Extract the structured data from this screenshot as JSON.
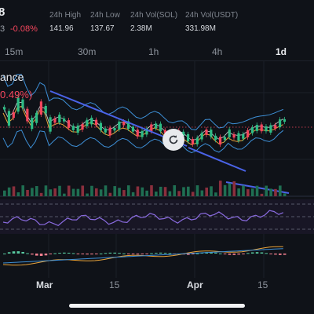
{
  "header": {
    "price": "8",
    "pair_suffix": "3",
    "change_pct": "-0.08%",
    "stats": [
      {
        "label": "24h High",
        "value": "141.96"
      },
      {
        "label": "24h Low",
        "value": "137.67"
      },
      {
        "label": "24h Vol(SOL)",
        "value": "2.38M"
      },
      {
        "label": "24h Vol(USDT)",
        "value": "331.98M"
      }
    ]
  },
  "intervals": [
    "15m",
    "30m",
    "1h",
    "4h",
    "1d"
  ],
  "active_interval": "1d",
  "indicator": {
    "label": "ance",
    "pct": "0.49%)"
  },
  "x_axis": [
    {
      "label": "Mar",
      "month": true
    },
    {
      "label": "15",
      "month": false
    },
    {
      "label": "Apr",
      "month": true
    },
    {
      "label": "15",
      "month": false
    }
  ],
  "colors": {
    "up": "#2ebd85",
    "down": "#f6465d",
    "bollinger": "#3d8fd6",
    "trendline": "#4a63e8",
    "ma": "#e8a33a",
    "rsi": "#8a6be0"
  }
}
